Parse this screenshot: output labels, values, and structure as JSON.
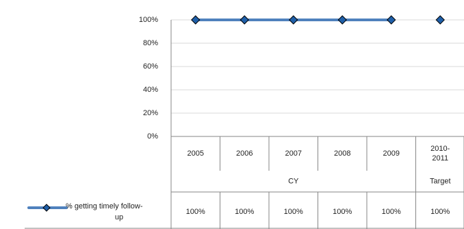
{
  "chart_data": {
    "type": "line",
    "title": "",
    "xlabel": "",
    "ylabel": "",
    "ylim": [
      0,
      100
    ],
    "yticks": [
      "0%",
      "20%",
      "40%",
      "60%",
      "80%",
      "100%"
    ],
    "ytick_values": [
      0,
      20,
      40,
      60,
      80,
      100
    ],
    "grid": true,
    "legend": "in-table",
    "categories": [
      "2005",
      "2006",
      "2007",
      "2008",
      "2009",
      "2010-2011"
    ],
    "category_lines": [
      [
        "2005"
      ],
      [
        "2006"
      ],
      [
        "2007"
      ],
      [
        "2008"
      ],
      [
        "2009"
      ],
      [
        "2010-",
        "2011"
      ]
    ],
    "groups": [
      {
        "label": "CY",
        "span": 5
      },
      {
        "label": "Target",
        "span": 1
      }
    ],
    "series": [
      {
        "name": "% getting timely follow-up",
        "name_lines": [
          "% getting timely follow-",
          "up"
        ],
        "values": [
          100,
          100,
          100,
          100,
          100,
          100
        ],
        "table_values": [
          "100%",
          "100%",
          "100%",
          "100%",
          "100%",
          "100%"
        ],
        "color": "#4F81BD",
        "marker_fill": "#1F5FA8",
        "marker_stroke": "#000000",
        "connected": [
          true,
          true,
          true,
          true,
          true,
          false
        ]
      }
    ],
    "colors": {
      "grid": "#D9D9D9",
      "axis": "#868686"
    }
  }
}
